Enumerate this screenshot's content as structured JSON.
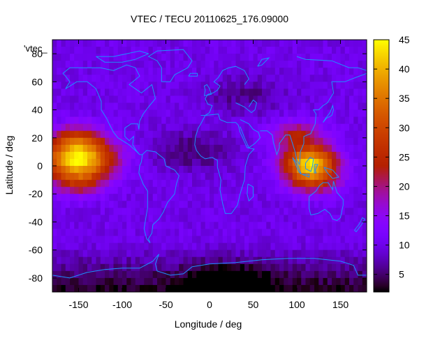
{
  "chart_data": {
    "type": "heatmap",
    "title": "VTEC / TECU 20110625_176.09000",
    "xlabel": "Longitude / deg",
    "ylabel": "Latitude / deg",
    "series_label": "'vtec_",
    "xlim": [
      -180,
      180
    ],
    "ylim": [
      -90,
      90
    ],
    "xticks": [
      -150,
      -100,
      -50,
      0,
      50,
      100,
      150
    ],
    "yticks": [
      -80,
      -60,
      -40,
      -20,
      0,
      20,
      40,
      60,
      80
    ],
    "colorbar": {
      "min": 2,
      "max": 45,
      "ticks": [
        5,
        10,
        15,
        20,
        25,
        30,
        35,
        40,
        45
      ],
      "palette": "gnuplot"
    },
    "colormap": "black-purple-red-orange-yellow",
    "overlay": "coastlines (blue)",
    "grid": false,
    "field_description": {
      "background_level": 10,
      "peaks": [
        {
          "lon": -150,
          "lat": 5,
          "value": 43,
          "lon_width": 40,
          "lat_width": 14
        },
        {
          "lon": 115,
          "lat": 2,
          "value": 42,
          "lon_width": 30,
          "lat_width": 12
        }
      ],
      "secondary_maxima": [
        {
          "lon": -150,
          "lat": 20,
          "value": 30
        },
        {
          "lon": -150,
          "lat": -12,
          "value": 30
        },
        {
          "lon": 100,
          "lat": 22,
          "value": 32
        },
        {
          "lon": 120,
          "lat": -12,
          "value": 30
        }
      ],
      "minima": [
        {
          "lon": 20,
          "lat": -85,
          "value": 2
        },
        {
          "lon": -20,
          "lat": 10,
          "value": 5
        },
        {
          "lon": 40,
          "lat": 50,
          "value": 6
        }
      ]
    }
  }
}
